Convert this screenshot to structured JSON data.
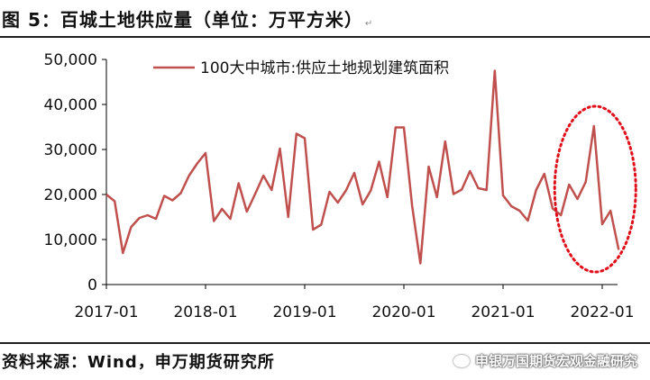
{
  "title": "图 5：百城土地供应量（单位：万平方米）",
  "source": "资料来源：Wind，申万期货研究所",
  "watermark": "申银万国期货宏观金融研究",
  "colors": {
    "series": "#c0504d",
    "ellipse": "#e0101a",
    "axis": "#000000"
  },
  "chart_data": {
    "type": "line",
    "title": "",
    "xlabel": "",
    "ylabel": "",
    "ylim": [
      0,
      50000
    ],
    "yticks": [
      "0",
      "10,000",
      "20,000",
      "30,000",
      "40,000",
      "50,000"
    ],
    "xtick_labels": [
      "2017-01",
      "2018-01",
      "2019-01",
      "2020-01",
      "2021-01",
      "2022-01"
    ],
    "legend": {
      "placement": "top-center"
    },
    "grid": false,
    "annotation": {
      "type": "dotted-ellipse",
      "x_start": "2021-08",
      "x_end": "2022-02"
    },
    "series": [
      {
        "name": "100大中城市:供应土地规划建筑面积",
        "x_start": "2017-01",
        "interval": "month",
        "values": [
          20000,
          18500,
          7000,
          12800,
          14800,
          15400,
          14600,
          19700,
          18700,
          20300,
          24200,
          26900,
          29200,
          14100,
          16800,
          14600,
          22500,
          16200,
          20100,
          24200,
          21000,
          30200,
          15000,
          33500,
          32500,
          12200,
          13300,
          20600,
          18200,
          20900,
          24800,
          17800,
          20900,
          27300,
          19400,
          34900,
          34900,
          17400,
          4700,
          26200,
          19400,
          31800,
          20100,
          21100,
          25200,
          21400,
          21000,
          47500,
          19800,
          17400,
          16400,
          14200,
          21000,
          24600,
          16900,
          15400,
          22200,
          19000,
          22800,
          35200,
          13400,
          16400,
          7700
        ]
      }
    ]
  }
}
